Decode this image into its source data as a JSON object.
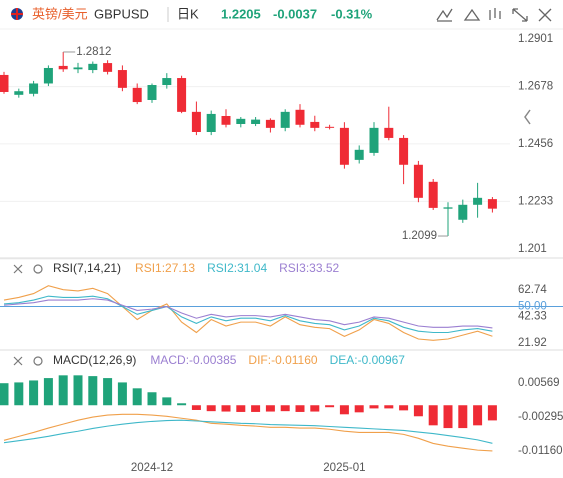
{
  "header": {
    "pair": "英镑/美元",
    "symbol": "GBPUSD",
    "period": "日K",
    "price": "1.2205",
    "change": "-0.0037",
    "change_pct": "-0.31%"
  },
  "chart_data": [
    {
      "type": "candlestick",
      "up_color": "#1fa37a",
      "down_color": "#ef2b35",
      "grid": true,
      "categories": [
        null,
        null,
        null,
        null,
        null,
        null,
        null,
        null,
        null,
        null,
        "2024-12",
        null,
        null,
        null,
        null,
        null,
        null,
        null,
        null,
        null,
        null,
        null,
        null,
        "2025-01",
        null,
        null,
        null,
        null,
        null,
        null,
        null,
        null,
        null,
        null
      ],
      "open": [
        1.2723,
        1.2646,
        1.265,
        1.269,
        1.2758,
        1.2745,
        1.2742,
        1.2769,
        1.2742,
        1.2673,
        1.2626,
        1.2684,
        1.2711,
        1.258,
        1.2502,
        1.2564,
        1.2533,
        1.2533,
        1.2549,
        1.2518,
        1.2588,
        1.2541,
        1.2522,
        1.2518,
        1.2394,
        1.2421,
        1.2518,
        1.2479,
        1.2375,
        1.2309,
        1.2205,
        1.2162,
        1.222,
        1.2242
      ],
      "high": [
        1.2735,
        1.267,
        1.27,
        1.276,
        1.2812,
        1.277,
        1.2775,
        1.278,
        1.276,
        1.269,
        1.269,
        1.273,
        1.272,
        1.262,
        1.2585,
        1.259,
        1.256,
        1.256,
        1.2555,
        1.259,
        1.261,
        1.2565,
        1.253,
        1.254,
        1.245,
        1.254,
        1.26,
        1.249,
        1.239,
        1.232,
        1.223,
        1.224,
        1.2305,
        1.225
      ],
      "low": [
        1.265,
        1.2635,
        1.264,
        1.268,
        1.2735,
        1.273,
        1.273,
        1.2725,
        1.266,
        1.261,
        1.2615,
        1.267,
        1.2575,
        1.249,
        1.249,
        1.252,
        1.252,
        1.2525,
        1.25,
        1.2505,
        1.252,
        1.2505,
        1.2512,
        1.236,
        1.238,
        1.241,
        1.247,
        1.23,
        1.223,
        1.22,
        1.2099,
        1.215,
        1.217,
        1.219
      ],
      "close": [
        1.2657,
        1.266,
        1.269,
        1.275,
        1.2745,
        1.2752,
        1.2766,
        1.2735,
        1.2673,
        1.2618,
        1.2684,
        1.2711,
        1.258,
        1.2502,
        1.2572,
        1.253,
        1.2553,
        1.255,
        1.2518,
        1.258,
        1.253,
        1.2518,
        1.252,
        1.2375,
        1.2433,
        1.2518,
        1.2479,
        1.2375,
        1.2247,
        1.2208,
        1.221,
        1.222,
        1.2247,
        1.2205
      ],
      "ylim": [
        1.201,
        1.2901
      ],
      "yticks": [
        1.2901,
        1.2678,
        1.2456,
        1.2233,
        1.201
      ]
    },
    {
      "type": "line",
      "title": "RSI(7,14,21)",
      "series": [
        {
          "name": "RSI1:27.13",
          "color": "#f0a04b",
          "values": [
            55,
            57,
            60,
            66,
            63,
            62,
            64,
            60,
            50,
            40,
            47,
            52,
            38,
            30,
            40,
            35,
            38,
            38,
            35,
            42,
            36,
            34,
            33,
            27,
            32,
            40,
            37,
            30,
            25,
            24,
            25,
            28,
            31,
            27.13
          ]
        },
        {
          "name": "RSI2:31.04",
          "color": "#3fb8c9",
          "values": [
            52,
            53,
            55,
            58,
            57,
            57,
            58,
            56,
            50,
            44,
            47,
            50,
            42,
            37,
            42,
            39,
            41,
            41,
            39,
            43,
            39,
            37,
            36,
            32,
            35,
            41,
            39,
            34,
            31,
            30,
            30,
            32,
            33,
            31.04
          ]
        },
        {
          "name": "RSI3:33.52",
          "color": "#9b7fd1",
          "values": [
            51,
            52,
            53,
            55,
            55,
            55,
            56,
            55,
            51,
            47,
            48,
            50,
            45,
            41,
            44,
            42,
            43,
            43,
            42,
            44,
            42,
            40,
            39,
            36,
            38,
            42,
            41,
            38,
            35,
            34,
            34,
            35,
            35,
            33.52
          ]
        }
      ],
      "ylim": [
        21.92,
        62.74
      ],
      "yticks": [
        62.74,
        {
          "value": 50,
          "label": "50.00"
        },
        42.33,
        21.92
      ],
      "reference_line": 1,
      "reference_color": "#5aa0dc"
    },
    {
      "type": "macd",
      "title": "MACD(12,26,9)",
      "series": [
        {
          "name": "MACD:-0.00385",
          "color": "#9b7fd1",
          "up_color": "#1fa37a",
          "down_color": "#ef2b35",
          "values": [
            0.0056,
            0.0058,
            0.0063,
            0.0069,
            0.0076,
            0.0076,
            0.0074,
            0.0069,
            0.0058,
            0.0043,
            0.0033,
            0.002,
            0.0005,
            -0.0012,
            -0.0015,
            -0.0016,
            -0.0017,
            -0.0017,
            -0.0016,
            -0.0015,
            -0.0017,
            -0.0016,
            -0.0005,
            -0.0023,
            -0.0018,
            -0.0008,
            -0.0008,
            -0.0013,
            -0.0028,
            -0.0051,
            -0.0058,
            -0.0058,
            -0.0051,
            -0.00385
          ]
        },
        {
          "name": "DIF:-0.01160",
          "color": "#f0a04b",
          "values": [
            -0.0089,
            -0.0079,
            -0.0069,
            -0.0058,
            -0.0048,
            -0.0038,
            -0.003,
            -0.0025,
            -0.0023,
            -0.0023,
            -0.0025,
            -0.0028,
            -0.0033,
            -0.0038,
            -0.0046,
            -0.0048,
            -0.0051,
            -0.0053,
            -0.0056,
            -0.0056,
            -0.0058,
            -0.0058,
            -0.0061,
            -0.0066,
            -0.0069,
            -0.0069,
            -0.0069,
            -0.0074,
            -0.0084,
            -0.0097,
            -0.0104,
            -0.0109,
            -0.0114,
            -0.0116
          ]
        },
        {
          "name": "DEA:-0.00967",
          "color": "#3fb8c9",
          "values": [
            -0.0095,
            -0.009,
            -0.0085,
            -0.0079,
            -0.0072,
            -0.0066,
            -0.0059,
            -0.0053,
            -0.0048,
            -0.0044,
            -0.0041,
            -0.0039,
            -0.0038,
            -0.004,
            -0.0042,
            -0.0044,
            -0.0046,
            -0.0047,
            -0.0049,
            -0.005,
            -0.0051,
            -0.0052,
            -0.0054,
            -0.0056,
            -0.0058,
            -0.006,
            -0.0062,
            -0.0064,
            -0.0068,
            -0.0072,
            -0.0077,
            -0.0082,
            -0.0088,
            -0.00967
          ]
        }
      ],
      "ylim": [
        -0.0134,
        0.0087
      ],
      "yticks": [
        0.00569,
        -0.00295,
        {
          "value": -0.0116,
          "label": "-0.01160"
        }
      ]
    }
  ]
}
